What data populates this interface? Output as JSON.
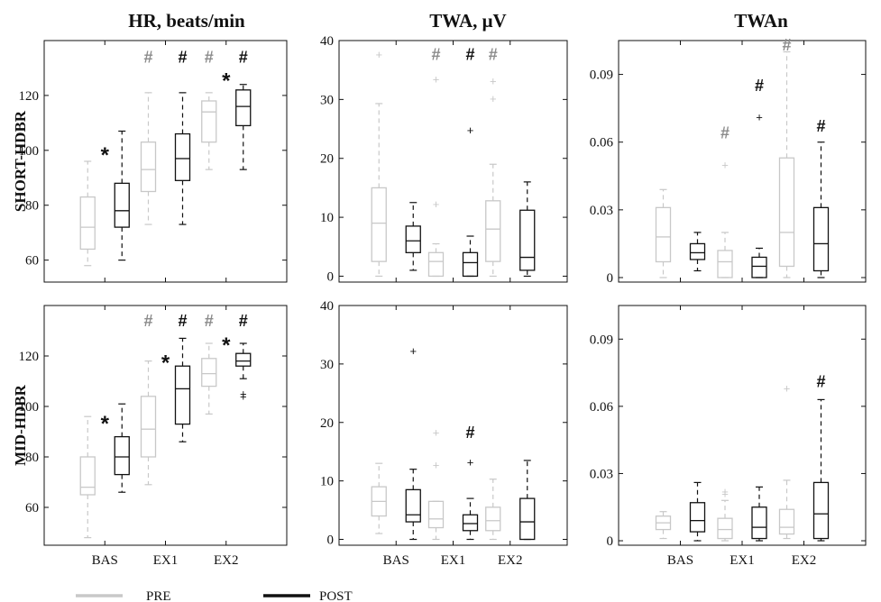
{
  "chart_data": {
    "type": "box",
    "columns": [
      "HR, beats/min",
      "TWA, μV",
      "TWAn"
    ],
    "rows": [
      "SHORT-HDBR",
      "MID-HDBR"
    ],
    "categories": [
      "BAS",
      "EX1",
      "EX2"
    ],
    "legend": {
      "position": "bottom-left",
      "series": [
        {
          "name": "PRE",
          "color": "#c8c8c8"
        },
        {
          "name": "POST",
          "color": "#111111"
        }
      ]
    },
    "marker_symbols": {
      "hash": "#",
      "star": "*",
      "outlier": "+"
    },
    "panels": [
      {
        "row": 0,
        "col": 0,
        "ylim": [
          52,
          140
        ],
        "yticks": [
          60,
          80,
          100,
          120
        ],
        "boxes": [
          {
            "cat": 0,
            "s": 0,
            "wlo": 58,
            "q1": 64,
            "med": 72,
            "q3": 83,
            "whi": 96,
            "out": []
          },
          {
            "cat": 0,
            "s": 1,
            "wlo": 60,
            "q1": 72,
            "med": 78,
            "q3": 88,
            "whi": 107,
            "out": []
          },
          {
            "cat": 1,
            "s": 0,
            "wlo": 73,
            "q1": 85,
            "med": 93,
            "q3": 103,
            "whi": 121,
            "out": []
          },
          {
            "cat": 1,
            "s": 1,
            "wlo": 73,
            "q1": 89,
            "med": 97,
            "q3": 106,
            "whi": 121,
            "out": []
          },
          {
            "cat": 2,
            "s": 0,
            "wlo": 93,
            "q1": 103,
            "med": 114,
            "q3": 118,
            "whi": 121,
            "out": []
          },
          {
            "cat": 2,
            "s": 1,
            "wlo": 93,
            "q1": 109,
            "med": 116,
            "q3": 122,
            "whi": 124,
            "out": []
          }
        ],
        "marks": [
          {
            "cat": 1,
            "s": 0,
            "sym": "hash",
            "y": 134
          },
          {
            "cat": 1,
            "s": 1,
            "sym": "hash",
            "y": 134
          },
          {
            "cat": 2,
            "s": 0,
            "sym": "hash",
            "y": 134
          },
          {
            "cat": 2,
            "s": 1,
            "sym": "hash",
            "y": 134
          },
          {
            "cat": 0,
            "s": 0.5,
            "sym": "star",
            "y": 99
          },
          {
            "cat": 2,
            "s": 0.5,
            "sym": "star",
            "y": 126
          }
        ]
      },
      {
        "row": 0,
        "col": 1,
        "ylim": [
          -1,
          40
        ],
        "yticks": [
          0,
          10,
          20,
          30,
          40
        ],
        "boxes": [
          {
            "cat": 0,
            "s": 0,
            "wlo": 0,
            "q1": 2.5,
            "med": 9,
            "q3": 15,
            "whi": 29.3,
            "out": [
              37.6
            ]
          },
          {
            "cat": 0,
            "s": 1,
            "wlo": 1,
            "q1": 4,
            "med": 6,
            "q3": 8.5,
            "whi": 12.5,
            "out": []
          },
          {
            "cat": 1,
            "s": 0,
            "wlo": 0,
            "q1": 0,
            "med": 2.5,
            "q3": 4,
            "whi": 5.5,
            "out": [
              12.2,
              33.4
            ]
          },
          {
            "cat": 1,
            "s": 1,
            "wlo": 0,
            "q1": 0,
            "med": 2.3,
            "q3": 4,
            "whi": 6.8,
            "out": [
              24.8
            ]
          },
          {
            "cat": 2,
            "s": 0,
            "wlo": 0,
            "q1": 2.5,
            "med": 8,
            "q3": 12.8,
            "whi": 19,
            "out": [
              30.1,
              33.1
            ]
          },
          {
            "cat": 2,
            "s": 1,
            "wlo": 0,
            "q1": 1,
            "med": 3.2,
            "q3": 11.2,
            "whi": 16,
            "out": []
          }
        ],
        "marks": [
          {
            "cat": 1,
            "s": 0,
            "sym": "hash",
            "y": 37.6
          },
          {
            "cat": 1,
            "s": 1,
            "sym": "hash",
            "y": 37.6
          },
          {
            "cat": 2,
            "s": 0,
            "sym": "hash",
            "y": 37.6
          }
        ]
      },
      {
        "row": 0,
        "col": 2,
        "ylim": [
          -0.002,
          0.105
        ],
        "yticks": [
          0,
          0.03,
          0.06,
          0.09
        ],
        "ytick_labels": [
          "0",
          "0.03",
          "0.06",
          "0.09"
        ],
        "boxes": [
          {
            "cat": 0,
            "s": 0,
            "wlo": 0,
            "q1": 0.007,
            "med": 0.018,
            "q3": 0.031,
            "whi": 0.039,
            "out": []
          },
          {
            "cat": 0,
            "s": 1,
            "wlo": 0.003,
            "q1": 0.008,
            "med": 0.011,
            "q3": 0.015,
            "whi": 0.02,
            "out": []
          },
          {
            "cat": 1,
            "s": 0,
            "wlo": 0,
            "q1": 0,
            "med": 0.007,
            "q3": 0.012,
            "whi": 0.02,
            "out": [
              0.05
            ]
          },
          {
            "cat": 1,
            "s": 1,
            "wlo": 0,
            "q1": 0,
            "med": 0.005,
            "q3": 0.009,
            "whi": 0.013,
            "out": [
              0.071
            ]
          },
          {
            "cat": 2,
            "s": 0,
            "wlo": 0,
            "q1": 0.005,
            "med": 0.02,
            "q3": 0.053,
            "whi": 0.1,
            "out": []
          },
          {
            "cat": 2,
            "s": 1,
            "wlo": 0,
            "q1": 0.003,
            "med": 0.015,
            "q3": 0.031,
            "whi": 0.06,
            "out": []
          }
        ],
        "marks": [
          {
            "cat": 1,
            "s": 0,
            "sym": "hash",
            "y": 0.064
          },
          {
            "cat": 1,
            "s": 1,
            "sym": "hash",
            "y": 0.085
          },
          {
            "cat": 2,
            "s": 0,
            "sym": "hash",
            "y": 0.103
          },
          {
            "cat": 2,
            "s": 1,
            "sym": "hash",
            "y": 0.067
          }
        ]
      },
      {
        "row": 1,
        "col": 0,
        "ylim": [
          45,
          140
        ],
        "yticks": [
          60,
          80,
          100,
          120
        ],
        "boxes": [
          {
            "cat": 0,
            "s": 0,
            "wlo": 48,
            "q1": 65,
            "med": 68,
            "q3": 80,
            "whi": 96,
            "out": []
          },
          {
            "cat": 0,
            "s": 1,
            "wlo": 66,
            "q1": 73,
            "med": 80,
            "q3": 88,
            "whi": 101,
            "out": []
          },
          {
            "cat": 1,
            "s": 0,
            "wlo": 69,
            "q1": 80,
            "med": 91,
            "q3": 104,
            "whi": 118,
            "out": []
          },
          {
            "cat": 1,
            "s": 1,
            "wlo": 86,
            "q1": 93,
            "med": 107,
            "q3": 116,
            "whi": 127,
            "out": []
          },
          {
            "cat": 2,
            "s": 0,
            "wlo": 97,
            "q1": 108,
            "med": 113,
            "q3": 119,
            "whi": 125,
            "out": []
          },
          {
            "cat": 2,
            "s": 1,
            "wlo": 111,
            "q1": 116,
            "med": 118,
            "q3": 121,
            "whi": 125,
            "out": [
              104,
              105
            ]
          }
        ],
        "marks": [
          {
            "cat": 1,
            "s": 0,
            "sym": "hash",
            "y": 134
          },
          {
            "cat": 1,
            "s": 1,
            "sym": "hash",
            "y": 134
          },
          {
            "cat": 2,
            "s": 0,
            "sym": "hash",
            "y": 134
          },
          {
            "cat": 2,
            "s": 1,
            "sym": "hash",
            "y": 134
          },
          {
            "cat": 0,
            "s": 0.5,
            "sym": "star",
            "y": 94
          },
          {
            "cat": 1,
            "s": 0.5,
            "sym": "star",
            "y": 118
          },
          {
            "cat": 2,
            "s": 0.5,
            "sym": "star",
            "y": 125
          }
        ]
      },
      {
        "row": 1,
        "col": 1,
        "ylim": [
          -1,
          40
        ],
        "yticks": [
          0,
          10,
          20,
          30,
          40
        ],
        "boxes": [
          {
            "cat": 0,
            "s": 0,
            "wlo": 1,
            "q1": 4,
            "med": 6.5,
            "q3": 9,
            "whi": 13,
            "out": []
          },
          {
            "cat": 0,
            "s": 1,
            "wlo": 0,
            "q1": 3,
            "med": 4.2,
            "q3": 8.5,
            "whi": 12,
            "out": [
              32.2
            ]
          },
          {
            "cat": 1,
            "s": 0,
            "wlo": 0,
            "q1": 2,
            "med": 3.5,
            "q3": 6.5,
            "whi": 6.5,
            "out": [
              12.7,
              18.3
            ]
          },
          {
            "cat": 1,
            "s": 1,
            "wlo": 0,
            "q1": 1.5,
            "med": 2.7,
            "q3": 4.2,
            "whi": 7,
            "out": [
              13.2
            ]
          },
          {
            "cat": 2,
            "s": 0,
            "wlo": 0,
            "q1": 1.5,
            "med": 3.2,
            "q3": 5.5,
            "whi": 10.3,
            "out": []
          },
          {
            "cat": 2,
            "s": 1,
            "wlo": 0,
            "q1": 0,
            "med": 3,
            "q3": 7,
            "whi": 13.5,
            "out": []
          }
        ],
        "marks": [
          {
            "cat": 1,
            "s": 1,
            "sym": "hash",
            "y": 18.3
          }
        ]
      },
      {
        "row": 1,
        "col": 2,
        "ylim": [
          -0.002,
          0.105
        ],
        "yticks": [
          0,
          0.03,
          0.06,
          0.09
        ],
        "ytick_labels": [
          "0",
          "0.03",
          "0.06",
          "0.09"
        ],
        "boxes": [
          {
            "cat": 0,
            "s": 0,
            "wlo": 0.001,
            "q1": 0.005,
            "med": 0.008,
            "q3": 0.011,
            "whi": 0.013,
            "out": []
          },
          {
            "cat": 0,
            "s": 1,
            "wlo": 0,
            "q1": 0.004,
            "med": 0.009,
            "q3": 0.017,
            "whi": 0.026,
            "out": []
          },
          {
            "cat": 1,
            "s": 0,
            "wlo": 0,
            "q1": 0.001,
            "med": 0.005,
            "q3": 0.01,
            "whi": 0.018,
            "out": [
              0.021,
              0.022
            ]
          },
          {
            "cat": 1,
            "s": 1,
            "wlo": 0,
            "q1": 0.001,
            "med": 0.006,
            "q3": 0.015,
            "whi": 0.024,
            "out": []
          },
          {
            "cat": 2,
            "s": 0,
            "wlo": 0.001,
            "q1": 0.003,
            "med": 0.006,
            "q3": 0.014,
            "whi": 0.027,
            "out": [
              0.068
            ]
          },
          {
            "cat": 2,
            "s": 1,
            "wlo": 0,
            "q1": 0.001,
            "med": 0.012,
            "q3": 0.026,
            "whi": 0.063,
            "out": []
          }
        ],
        "marks": [
          {
            "cat": 2,
            "s": 1,
            "sym": "hash",
            "y": 0.071
          }
        ]
      }
    ]
  }
}
